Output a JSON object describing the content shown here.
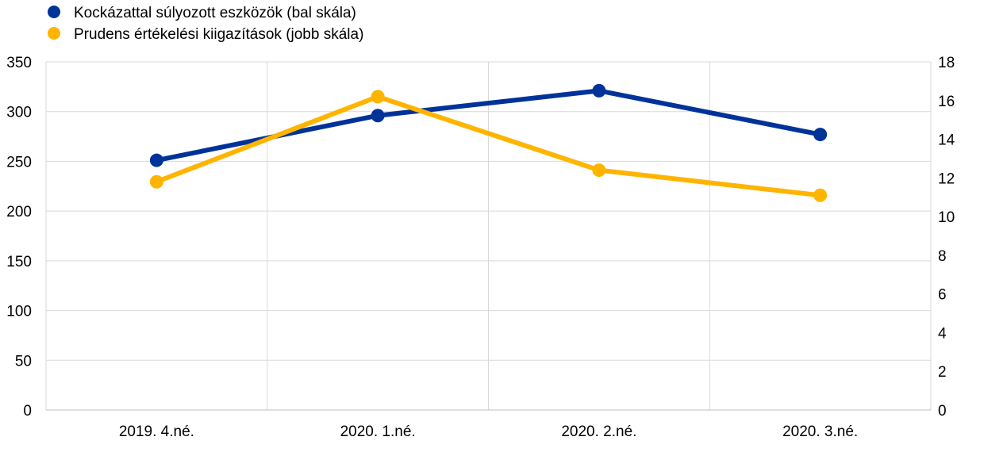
{
  "chart_data": {
    "type": "line",
    "categories": [
      "2019. 4.né.",
      "2020. 1.né.",
      "2020. 2.né.",
      "2020. 3.né."
    ],
    "series": [
      {
        "name": "Kockázattal súlyozott eszközök (bal skála)",
        "axis": "left",
        "color": "#003399",
        "values": [
          251,
          296,
          321,
          277
        ]
      },
      {
        "name": "Prudens értékelési kiigazítások (jobb skála)",
        "axis": "right",
        "color": "#FFB400",
        "values": [
          11.8,
          16.2,
          12.4,
          11.1
        ]
      }
    ],
    "y_left": {
      "min": 0,
      "max": 350,
      "ticks": [
        0,
        50,
        100,
        150,
        200,
        250,
        300,
        350
      ]
    },
    "y_right": {
      "min": 0,
      "max": 18,
      "ticks": [
        0,
        2,
        4,
        6,
        8,
        10,
        12,
        14,
        16,
        18
      ]
    },
    "grid": true,
    "legend_position": "top-left"
  }
}
